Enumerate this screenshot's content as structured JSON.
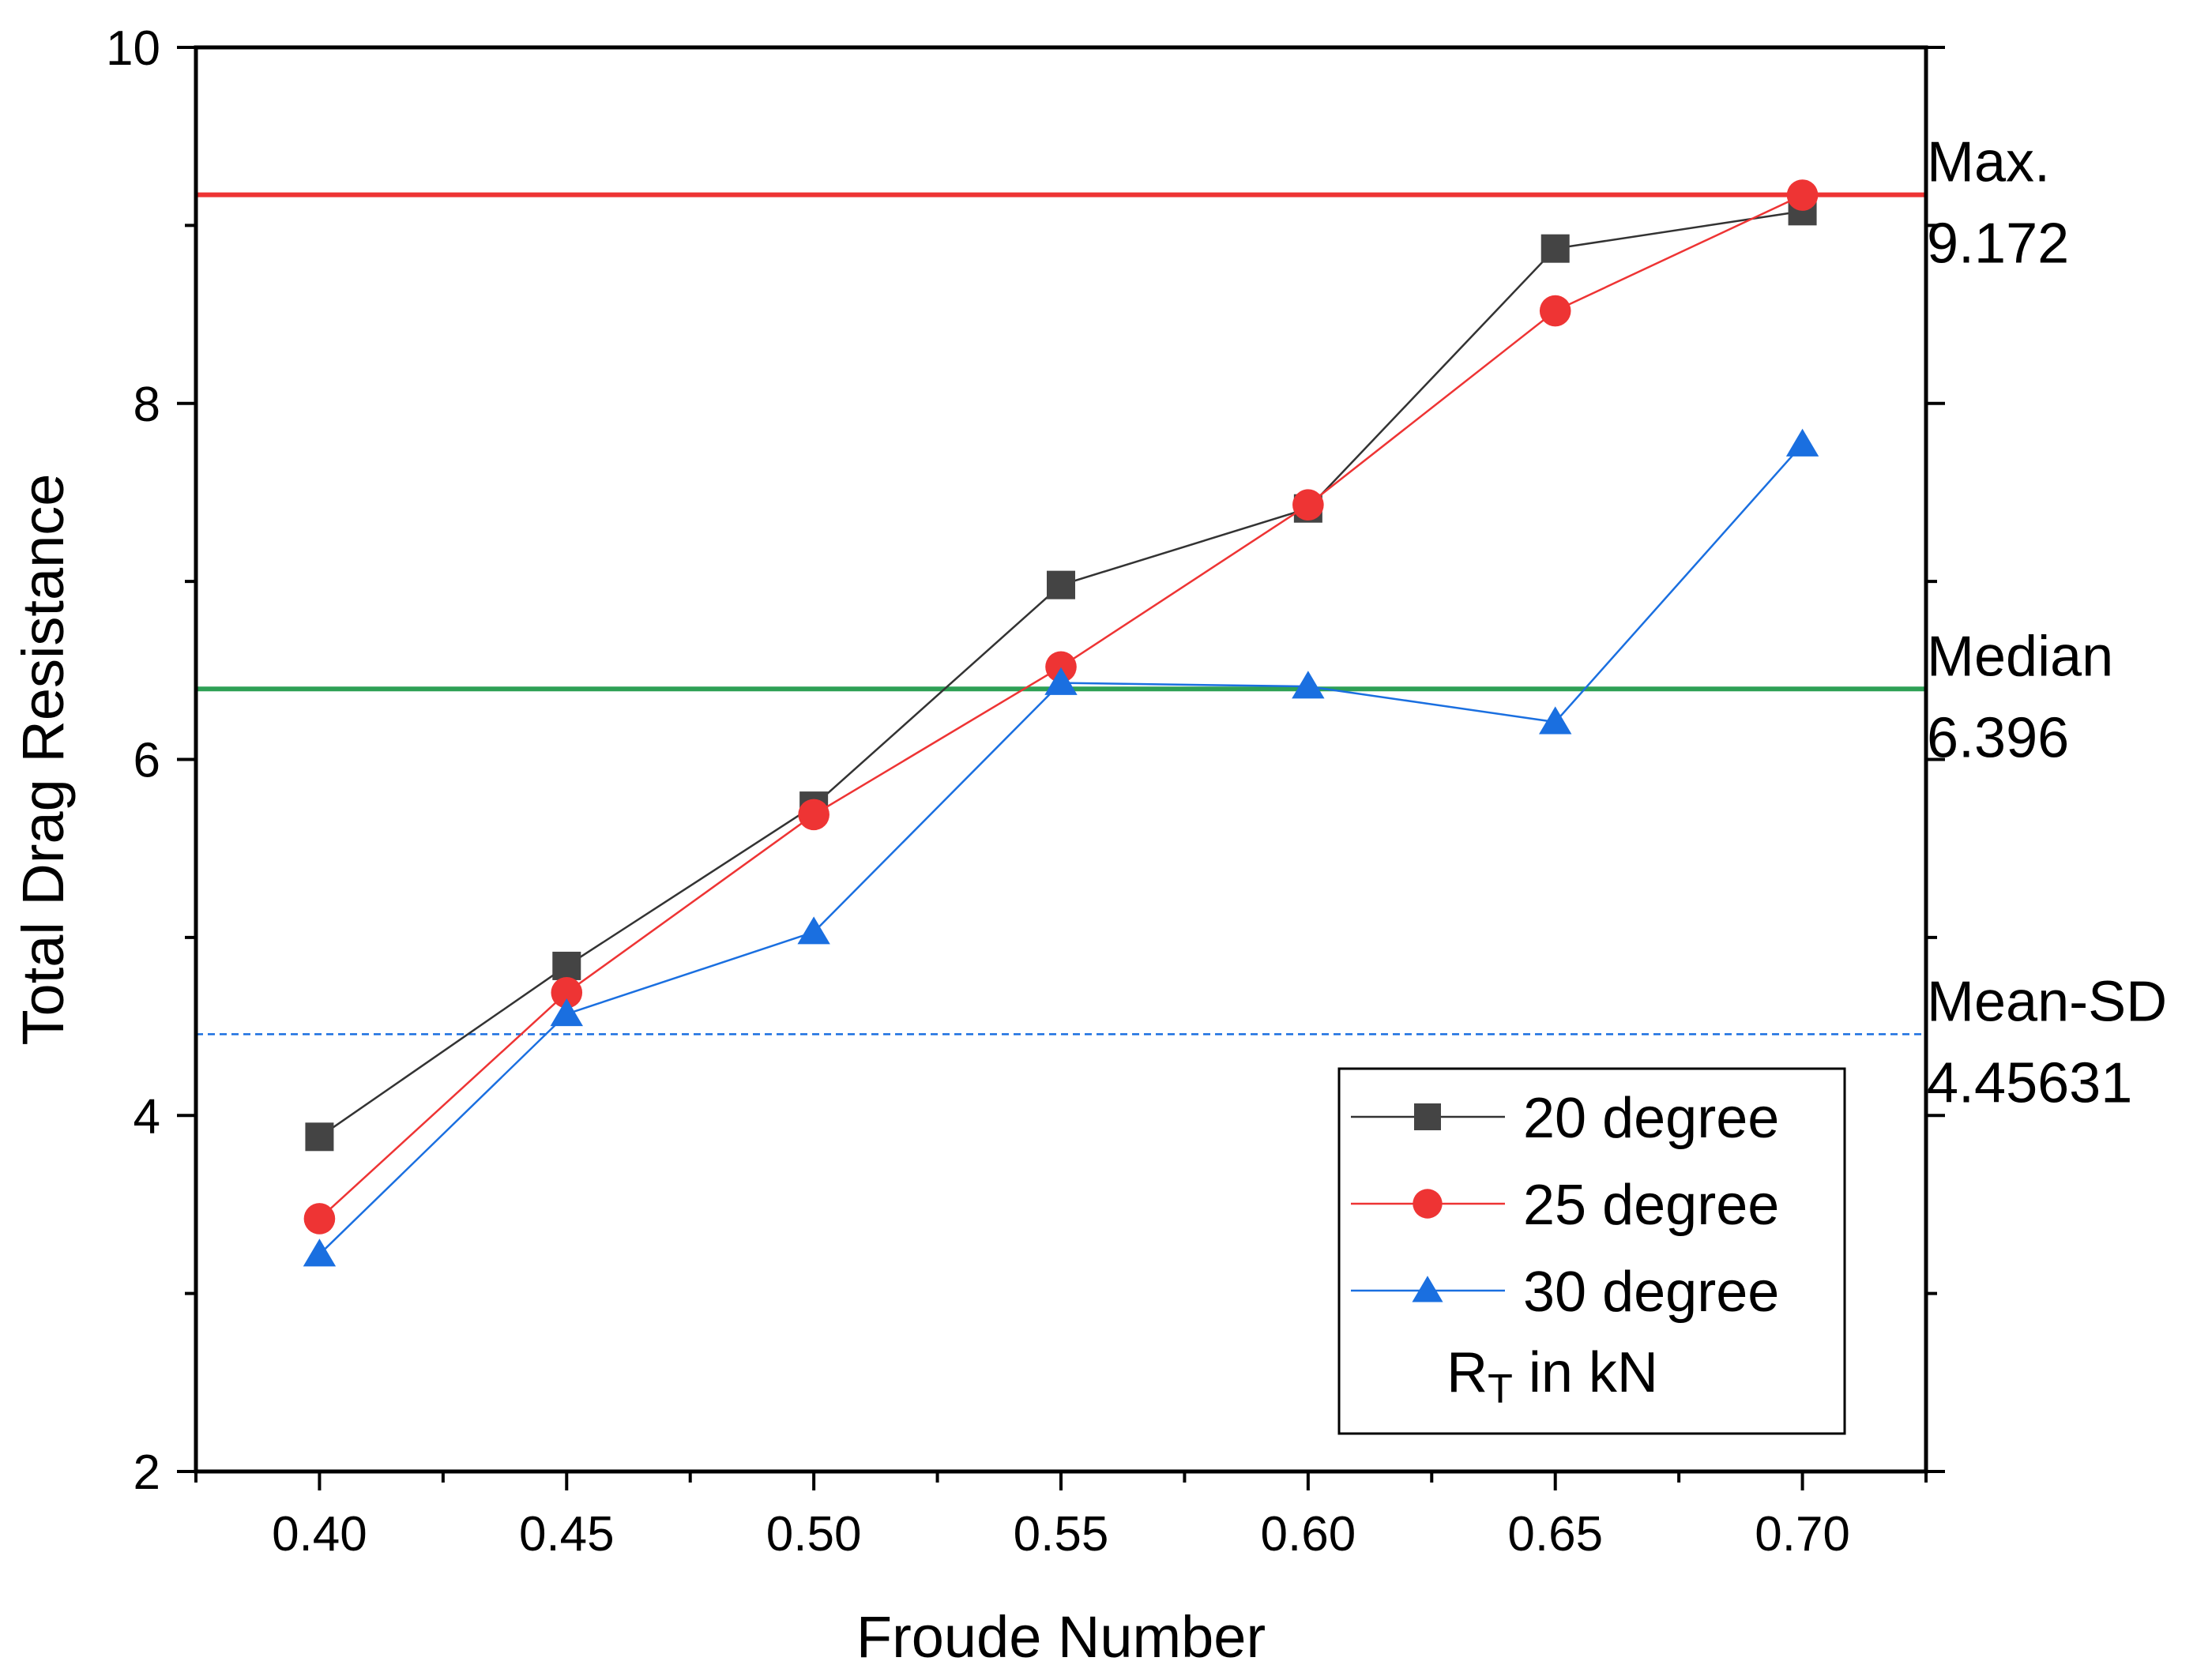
{
  "chart_data": {
    "type": "line",
    "title": "",
    "xlabel": "Froude Number",
    "ylabel": "Total Drag Resistance",
    "xlim": [
      0.375,
      0.725
    ],
    "ylim": [
      2,
      10
    ],
    "x": [
      0.4,
      0.45,
      0.5,
      0.55,
      0.6,
      0.65,
      0.7
    ],
    "x_tick_labels": [
      "0.40",
      "0.45",
      "0.50",
      "0.55",
      "0.60",
      "0.65",
      "0.70"
    ],
    "x_minor_ticks": [
      0.375,
      0.425,
      0.475,
      0.525,
      0.575,
      0.625,
      0.675,
      0.725
    ],
    "y_ticks": [
      2,
      4,
      6,
      8,
      10
    ],
    "y_tick_labels": [
      "2",
      "4",
      "6",
      "8",
      "10"
    ],
    "y_minor_ticks": [
      3,
      5,
      7,
      9
    ],
    "grid": false,
    "series": [
      {
        "name": "20 degree",
        "marker": "square",
        "color": "#444444",
        "line_color": "#333333",
        "values": [
          3.88,
          4.84,
          5.74,
          6.98,
          7.41,
          8.87,
          9.08
        ]
      },
      {
        "name": "25 degree",
        "marker": "circle",
        "color": "#ee3434",
        "line_color": "#ee3434",
        "values": [
          3.42,
          4.69,
          5.69,
          6.52,
          7.43,
          8.52,
          9.17
        ]
      },
      {
        "name": "30 degree",
        "marker": "triangle",
        "color": "#1a6fe0",
        "line_color": "#1a6fe0",
        "values": [
          3.22,
          4.57,
          5.03,
          6.43,
          6.41,
          6.21,
          7.77
        ]
      }
    ],
    "reference_lines": [
      {
        "name": "Max.",
        "value": 9.172,
        "value_label": "9.172",
        "color": "#ee3434",
        "style": "solid"
      },
      {
        "name": "Median",
        "value": 6.396,
        "value_label": "6.396",
        "color": "#2ea055",
        "style": "solid"
      },
      {
        "name": "Mean-SD",
        "value": 4.45631,
        "value_label": "4.45631",
        "color": "#1a6fe0",
        "style": "dashed"
      }
    ],
    "legend": {
      "position": "bottom-right",
      "entries": [
        "20 degree",
        "25 degree",
        "30 degree"
      ],
      "note_main": "R",
      "note_sub": "T",
      "note_rest": " in kN"
    }
  }
}
